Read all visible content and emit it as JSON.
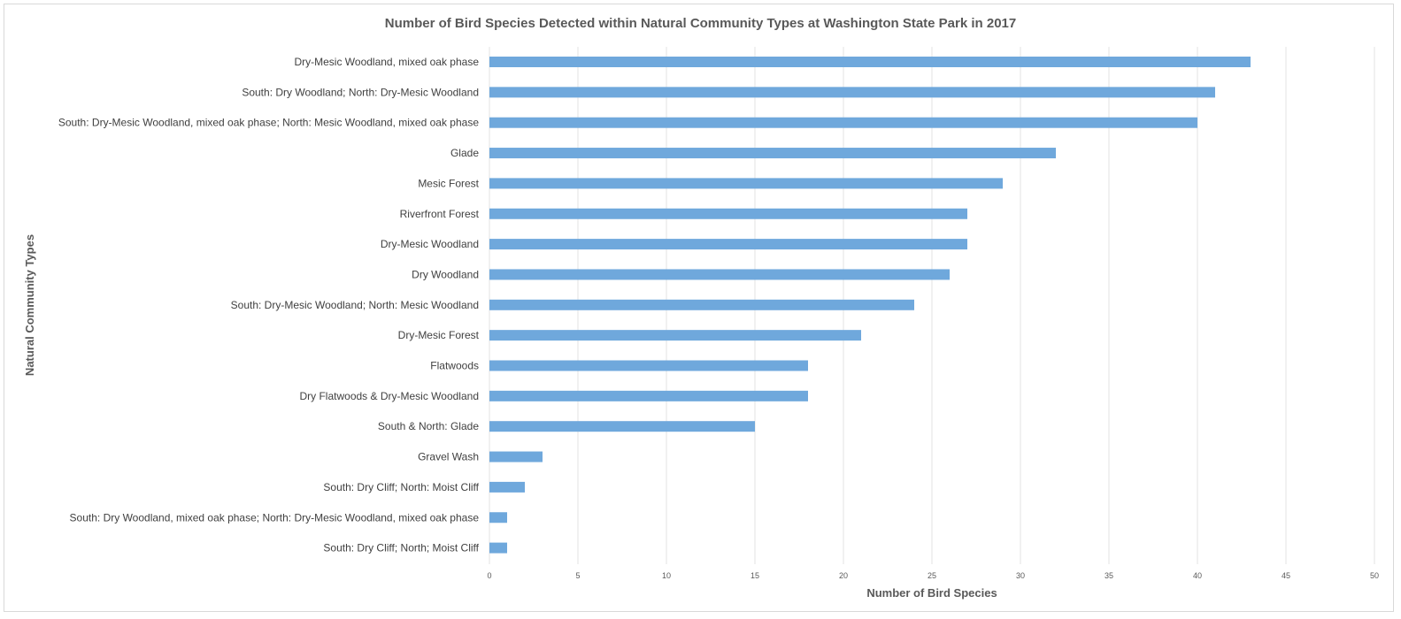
{
  "chart_data": {
    "type": "bar",
    "orientation": "horizontal",
    "title": "Number of Bird Species Detected within Natural Community Types at Washington State Park in 2017",
    "xlabel": "Number of Bird Species",
    "ylabel": "Natural Community Types",
    "xlim": [
      0,
      50
    ],
    "xticks": [
      0,
      5,
      10,
      15,
      20,
      25,
      30,
      35,
      40,
      45,
      50
    ],
    "grid": "vertical",
    "legend": "none",
    "bar_color": "#6fa8dc",
    "categories": [
      "Dry-Mesic Woodland, mixed oak phase",
      "South: Dry Woodland; North: Dry-Mesic Woodland",
      "South: Dry-Mesic Woodland, mixed oak phase; North: Mesic Woodland, mixed oak phase",
      "Glade",
      "Mesic Forest",
      "Riverfront Forest",
      "Dry-Mesic Woodland",
      "Dry Woodland",
      "South: Dry-Mesic Woodland; North: Mesic Woodland",
      "Dry-Mesic Forest",
      "Flatwoods",
      "Dry Flatwoods & Dry-Mesic Woodland",
      "South & North: Glade",
      "Gravel Wash",
      "South: Dry Cliff; North: Moist Cliff",
      "South: Dry Woodland, mixed oak phase; North: Dry-Mesic Woodland, mixed oak phase",
      "South: Dry Cliff; North; Moist Cliff"
    ],
    "values": [
      43,
      41,
      40,
      32,
      29,
      27,
      27,
      26,
      24,
      21,
      18,
      18,
      15,
      3,
      2,
      1,
      1
    ]
  }
}
